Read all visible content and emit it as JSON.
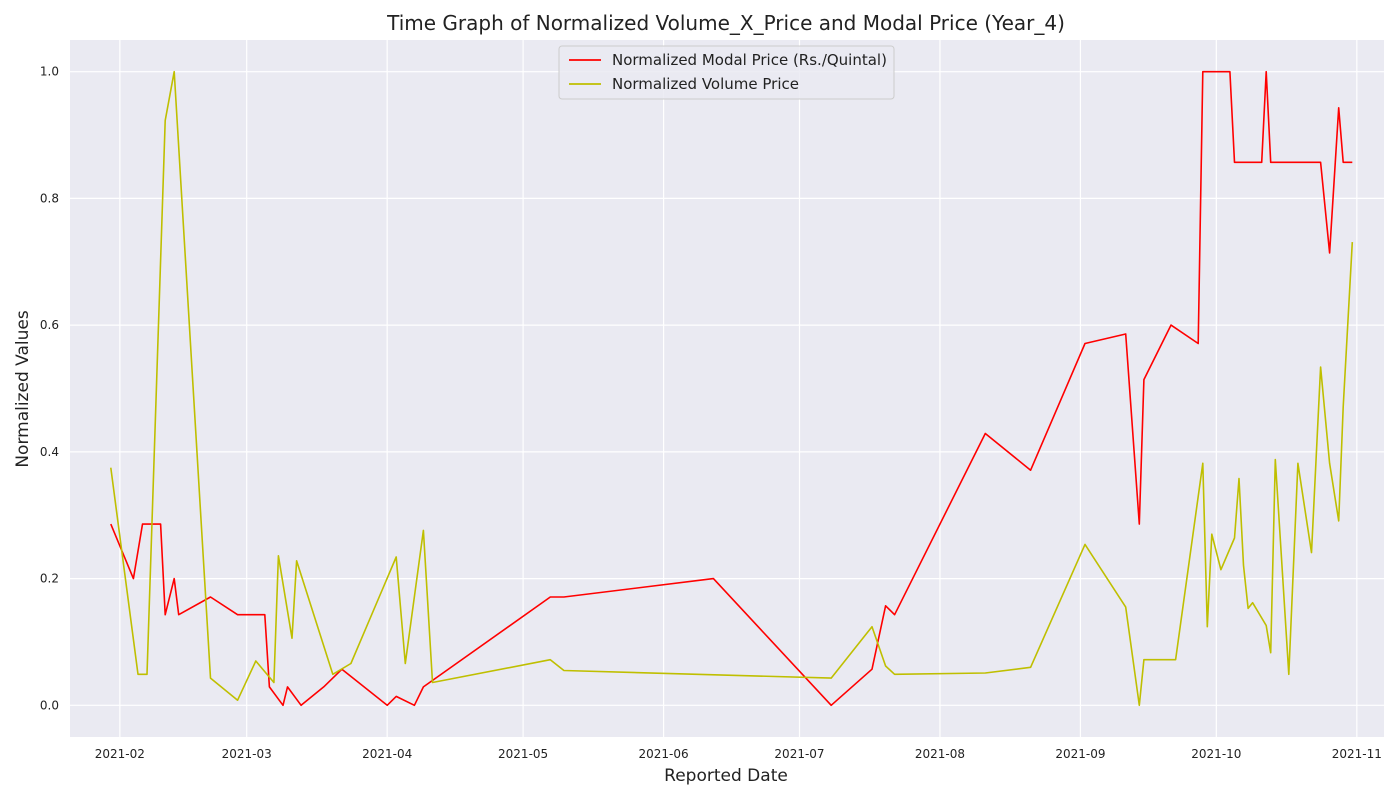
{
  "chart_data": {
    "type": "line",
    "title": "Time Graph of Normalized Volume_X_Price and Modal Price (Year_4)",
    "xlabel": "Reported Date",
    "ylabel": "Normalized Values",
    "x_ticks": [
      "2021-02",
      "2021-03",
      "2021-04",
      "2021-05",
      "2021-06",
      "2021-07",
      "2021-08",
      "2021-09",
      "2021-10",
      "2021-11"
    ],
    "y_ticks": [
      "0.0",
      "0.2",
      "0.4",
      "0.6",
      "0.8",
      "1.0"
    ],
    "xlim": [
      "2021-01-21",
      "2021-11-07"
    ],
    "ylim": [
      -0.05,
      1.05
    ],
    "grid": true,
    "legend_position": "top-center",
    "background_color": "#eaeaf2",
    "series": [
      {
        "name": "Normalized Modal Price (Rs./Quintal)",
        "color": "#ff0000",
        "points": [
          [
            "2021-01-30",
            0.286
          ],
          [
            "2021-02-04",
            0.2
          ],
          [
            "2021-02-06",
            0.286
          ],
          [
            "2021-02-10",
            0.286
          ],
          [
            "2021-02-11",
            0.143
          ],
          [
            "2021-02-13",
            0.2
          ],
          [
            "2021-02-14",
            0.143
          ],
          [
            "2021-02-21",
            0.171
          ],
          [
            "2021-02-27",
            0.143
          ],
          [
            "2021-03-05",
            0.143
          ],
          [
            "2021-03-06",
            0.029
          ],
          [
            "2021-03-09",
            0.0
          ],
          [
            "2021-03-10",
            0.029
          ],
          [
            "2021-03-13",
            0.0
          ],
          [
            "2021-03-18",
            0.029
          ],
          [
            "2021-03-22",
            0.057
          ],
          [
            "2021-04-01",
            0.0
          ],
          [
            "2021-04-03",
            0.014
          ],
          [
            "2021-04-07",
            0.0
          ],
          [
            "2021-04-09",
            0.029
          ],
          [
            "2021-05-07",
            0.171
          ],
          [
            "2021-05-10",
            0.171
          ],
          [
            "2021-06-12",
            0.2
          ],
          [
            "2021-07-08",
            0.0
          ],
          [
            "2021-07-17",
            0.057
          ],
          [
            "2021-07-20",
            0.157
          ],
          [
            "2021-07-22",
            0.143
          ],
          [
            "2021-08-11",
            0.429
          ],
          [
            "2021-08-21",
            0.371
          ],
          [
            "2021-09-02",
            0.571
          ],
          [
            "2021-09-11",
            0.586
          ],
          [
            "2021-09-14",
            0.286
          ],
          [
            "2021-09-15",
            0.514
          ],
          [
            "2021-09-21",
            0.6
          ],
          [
            "2021-09-27",
            0.571
          ],
          [
            "2021-09-28",
            1.0
          ],
          [
            "2021-10-04",
            1.0
          ],
          [
            "2021-10-05",
            0.857
          ],
          [
            "2021-10-11",
            0.857
          ],
          [
            "2021-10-12",
            1.0
          ],
          [
            "2021-10-13",
            0.857
          ],
          [
            "2021-10-24",
            0.857
          ],
          [
            "2021-10-26",
            0.714
          ],
          [
            "2021-10-28",
            0.943
          ],
          [
            "2021-10-29",
            0.857
          ],
          [
            "2021-10-31",
            0.857
          ]
        ]
      },
      {
        "name": "Normalized Volume Price",
        "color": "#bfbf00",
        "points": [
          [
            "2021-01-30",
            0.375
          ],
          [
            "2021-02-05",
            0.049
          ],
          [
            "2021-02-07",
            0.049
          ],
          [
            "2021-02-11",
            0.923
          ],
          [
            "2021-02-13",
            1.0
          ],
          [
            "2021-02-21",
            0.043
          ],
          [
            "2021-02-27",
            0.008
          ],
          [
            "2021-03-03",
            0.07
          ],
          [
            "2021-03-07",
            0.036
          ],
          [
            "2021-03-08",
            0.236
          ],
          [
            "2021-03-11",
            0.106
          ],
          [
            "2021-03-12",
            0.228
          ],
          [
            "2021-03-20",
            0.049
          ],
          [
            "2021-03-24",
            0.066
          ],
          [
            "2021-04-03",
            0.234
          ],
          [
            "2021-04-05",
            0.066
          ],
          [
            "2021-04-09",
            0.276
          ],
          [
            "2021-04-11",
            0.036
          ],
          [
            "2021-05-07",
            0.072
          ],
          [
            "2021-05-10",
            0.055
          ],
          [
            "2021-07-08",
            0.043
          ],
          [
            "2021-07-17",
            0.124
          ],
          [
            "2021-07-20",
            0.062
          ],
          [
            "2021-07-22",
            0.049
          ],
          [
            "2021-08-11",
            0.051
          ],
          [
            "2021-08-21",
            0.06
          ],
          [
            "2021-09-02",
            0.254
          ],
          [
            "2021-09-11",
            0.155
          ],
          [
            "2021-09-14",
            0.0
          ],
          [
            "2021-09-15",
            0.072
          ],
          [
            "2021-09-22",
            0.072
          ],
          [
            "2021-09-28",
            0.382
          ],
          [
            "2021-09-29",
            0.124
          ],
          [
            "2021-09-30",
            0.27
          ],
          [
            "2021-10-02",
            0.214
          ],
          [
            "2021-10-05",
            0.264
          ],
          [
            "2021-10-06",
            0.358
          ],
          [
            "2021-10-07",
            0.221
          ],
          [
            "2021-10-08",
            0.153
          ],
          [
            "2021-10-09",
            0.162
          ],
          [
            "2021-10-12",
            0.126
          ],
          [
            "2021-10-13",
            0.083
          ],
          [
            "2021-10-14",
            0.388
          ],
          [
            "2021-10-17",
            0.049
          ],
          [
            "2021-10-19",
            0.382
          ],
          [
            "2021-10-22",
            0.241
          ],
          [
            "2021-10-24",
            0.534
          ],
          [
            "2021-10-26",
            0.382
          ],
          [
            "2021-10-28",
            0.291
          ],
          [
            "2021-10-29",
            0.471
          ],
          [
            "2021-10-31",
            0.731
          ]
        ]
      }
    ]
  }
}
